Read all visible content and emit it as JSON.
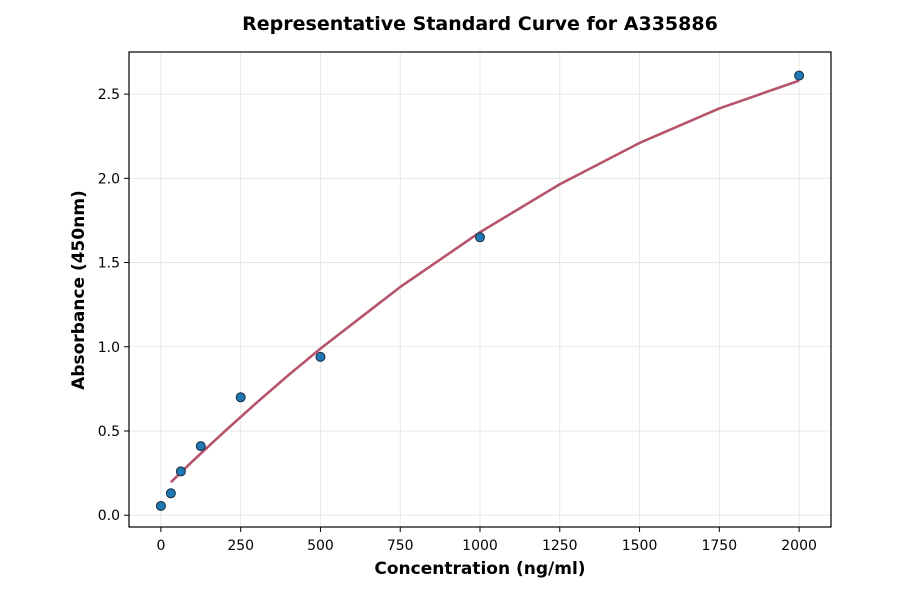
{
  "chart_data": {
    "type": "scatter",
    "title": "Representative Standard Curve for A335886",
    "xlabel": "Concentration (ng/ml)",
    "ylabel": "Absorbance (450nm)",
    "xlim": [
      -100,
      2100
    ],
    "ylim": [
      -0.07,
      2.75
    ],
    "xticks": [
      0,
      250,
      500,
      750,
      1000,
      1250,
      1500,
      1750,
      2000
    ],
    "yticks": [
      0.0,
      0.5,
      1.0,
      1.5,
      2.0,
      2.5
    ],
    "ytick_labels": [
      "0.0",
      "0.5",
      "1.0",
      "1.5",
      "2.0",
      "2.5"
    ],
    "grid": true,
    "points": {
      "x": [
        0,
        31.25,
        62.5,
        125,
        250,
        500,
        1000,
        2000
      ],
      "y": [
        0.055,
        0.13,
        0.26,
        0.41,
        0.7,
        0.94,
        1.65,
        2.61
      ],
      "color": "#1f77b4"
    },
    "fit_curve": {
      "x": [
        31.25,
        100,
        200,
        300,
        400,
        500,
        750,
        1000,
        1250,
        1500,
        1750,
        2000
      ],
      "y": [
        0.196,
        0.322,
        0.498,
        0.668,
        0.832,
        0.989,
        1.355,
        1.68,
        1.965,
        2.21,
        2.415,
        2.58
      ],
      "color": "#b5546a"
    }
  }
}
